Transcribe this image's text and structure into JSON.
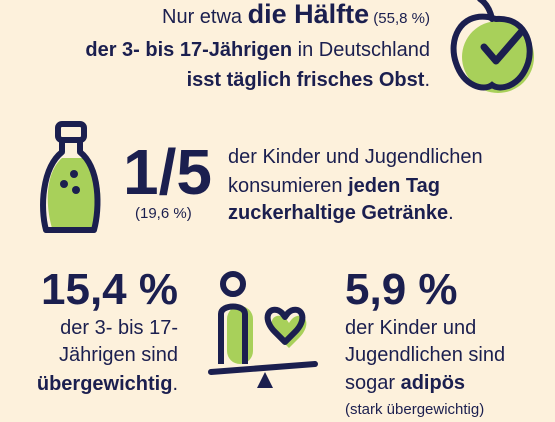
{
  "fruit": {
    "lines": [
      [
        "Nur etwa ",
        "die Hälfte",
        " (55,8 %)"
      ],
      [
        "der 3- bis 17-Jährigen",
        " in Deutschland"
      ],
      [
        "isst täglich frisches Obst",
        "."
      ]
    ]
  },
  "drinks": {
    "headline": "1/5",
    "percentage": "(19,6 %)",
    "lines": [
      [
        "der Kinder und Jugendlichen"
      ],
      [
        "konsumieren ",
        "jeden Tag"
      ],
      [
        "zuckerhaltige Getränke",
        "."
      ]
    ]
  },
  "overweight": {
    "headline": "15,4 %",
    "lines": [
      [
        "der 3- bis 17-"
      ],
      [
        "Jährigen sind"
      ],
      [
        "übergewichtig",
        "."
      ]
    ]
  },
  "obesity": {
    "headline": "5,9 %",
    "lines": [
      [
        "der Kinder und"
      ],
      [
        "Jugendlichen sind"
      ],
      [
        "sogar ",
        "adipös"
      ]
    ],
    "note": "(stark übergewichtig)"
  }
}
